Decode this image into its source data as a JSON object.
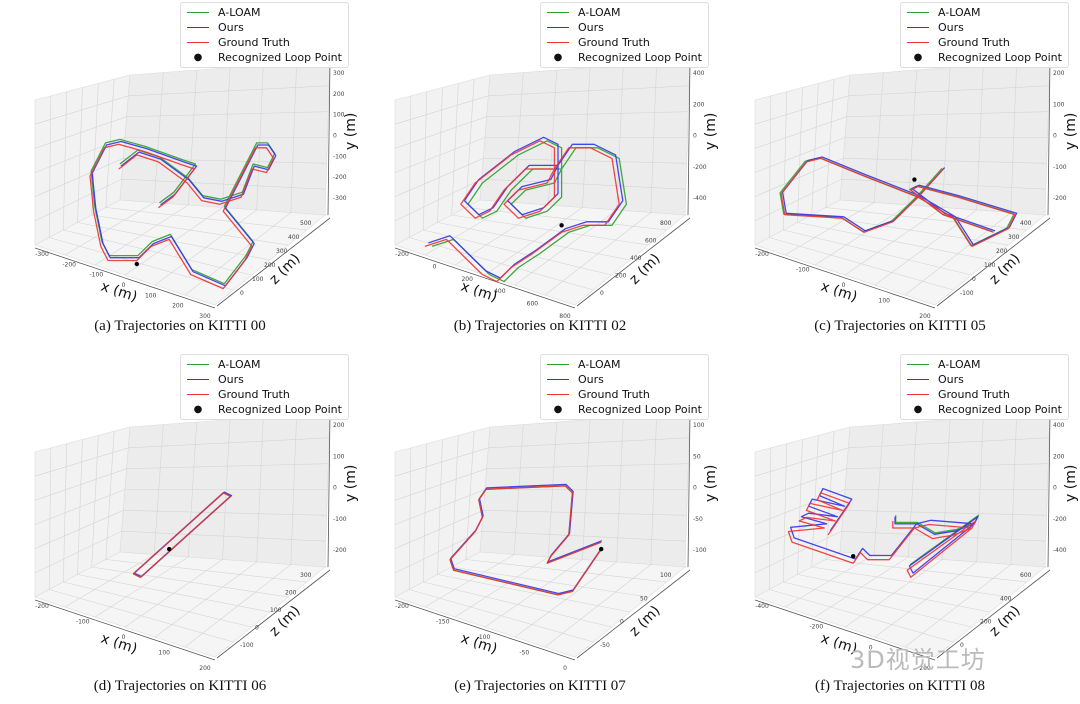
{
  "figure": {
    "watermark": "3D视觉工坊",
    "legend": [
      {
        "label": "A-LOAM",
        "color": "#2ca02c",
        "kind": "line"
      },
      {
        "label": "Ours",
        "color": "#3333ee",
        "kind": "line"
      },
      {
        "label": "Ground Truth",
        "color": "#ee3333",
        "kind": "line"
      },
      {
        "label": "Recognized Loop Point",
        "color": "#000000",
        "kind": "dot"
      }
    ]
  },
  "chart_data": [
    {
      "type": "line",
      "title": "(a) Trajectories on KITTI 00",
      "xlabel": "x (m)",
      "ylabel": "y (m)",
      "zlabel": "z (m)",
      "x_ticks": [
        "-300",
        "-200",
        "-100",
        "0",
        "100",
        "200",
        "300"
      ],
      "y_ticks": [
        "300",
        "200",
        "100",
        "0",
        "-100",
        "-200",
        "-300"
      ],
      "z_ticks": [
        "0",
        "100",
        "200",
        "300",
        "400",
        "500"
      ],
      "legend_position": "top-right",
      "series": [
        {
          "name": "Ground Truth",
          "color": "#ee3333",
          "points": [
            [
              0.33,
              0.48
            ],
            [
              0.38,
              0.44
            ],
            [
              0.44,
              0.46
            ],
            [
              0.52,
              0.52
            ],
            [
              0.56,
              0.57
            ],
            [
              0.61,
              0.58
            ],
            [
              0.67,
              0.56
            ],
            [
              0.7,
              0.48
            ],
            [
              0.74,
              0.49
            ],
            [
              0.76,
              0.45
            ],
            [
              0.74,
              0.42
            ],
            [
              0.71,
              0.42
            ],
            [
              0.62,
              0.6
            ],
            [
              0.7,
              0.7
            ],
            [
              0.68,
              0.74
            ],
            [
              0.62,
              0.82
            ],
            [
              0.53,
              0.78
            ],
            [
              0.47,
              0.68
            ],
            [
              0.42,
              0.7
            ],
            [
              0.38,
              0.74
            ],
            [
              0.3,
              0.74
            ],
            [
              0.28,
              0.7
            ],
            [
              0.26,
              0.6
            ],
            [
              0.25,
              0.5
            ],
            [
              0.29,
              0.42
            ],
            [
              0.33,
              0.41
            ],
            [
              0.4,
              0.43
            ],
            [
              0.51,
              0.47
            ],
            [
              0.54,
              0.48
            ],
            [
              0.48,
              0.56
            ],
            [
              0.44,
              0.59
            ]
          ]
        },
        {
          "name": "Ours",
          "color": "#3333ee",
          "offset": [
            0.006,
            -0.008
          ]
        },
        {
          "name": "A-LOAM",
          "color": "#2ca02c",
          "offset": [
            0.003,
            -0.014
          ]
        }
      ],
      "loop_points": [
        [
          0.38,
          0.75
        ]
      ]
    },
    {
      "type": "line",
      "title": "(b) Trajectories on KITTI 02",
      "xlabel": "x (m)",
      "ylabel": "y (m)",
      "zlabel": "z (m)",
      "x_ticks": [
        "-200",
        "0",
        "200",
        "400",
        "600",
        "800"
      ],
      "y_ticks": [
        "400",
        "200",
        "0",
        "-200",
        "-400"
      ],
      "z_ticks": [
        "0",
        "200",
        "400",
        "600",
        "800"
      ],
      "legend_position": "top-right",
      "series": [
        {
          "name": "Ground Truth",
          "color": "#ee3333",
          "points": [
            [
              0.18,
              0.7
            ],
            [
              0.24,
              0.68
            ],
            [
              0.3,
              0.74
            ],
            [
              0.34,
              0.78
            ],
            [
              0.38,
              0.8
            ],
            [
              0.42,
              0.76
            ],
            [
              0.48,
              0.72
            ],
            [
              0.56,
              0.66
            ],
            [
              0.62,
              0.64
            ],
            [
              0.68,
              0.64
            ],
            [
              0.72,
              0.58
            ],
            [
              0.7,
              0.45
            ],
            [
              0.64,
              0.42
            ],
            [
              0.58,
              0.42
            ],
            [
              0.54,
              0.48
            ],
            [
              0.54,
              0.56
            ],
            [
              0.5,
              0.6
            ],
            [
              0.44,
              0.62
            ],
            [
              0.4,
              0.58
            ],
            [
              0.44,
              0.54
            ],
            [
              0.52,
              0.52
            ],
            [
              0.54,
              0.48
            ],
            [
              0.46,
              0.48
            ],
            [
              0.4,
              0.54
            ],
            [
              0.36,
              0.6
            ],
            [
              0.32,
              0.62
            ],
            [
              0.28,
              0.58
            ],
            [
              0.32,
              0.52
            ],
            [
              0.42,
              0.44
            ],
            [
              0.5,
              0.4
            ],
            [
              0.54,
              0.42
            ],
            [
              0.54,
              0.48
            ]
          ]
        },
        {
          "name": "Ours",
          "color": "#3333ee",
          "offset": [
            0.01,
            -0.01
          ]
        },
        {
          "name": "A-LOAM",
          "color": "#2ca02c",
          "offset": [
            0.02,
            0.0
          ]
        }
      ],
      "loop_points": [
        [
          0.56,
          0.64
        ]
      ]
    },
    {
      "type": "line",
      "title": "(c) Trajectories on KITTI 05",
      "xlabel": "x (m)",
      "ylabel": "y (m)",
      "zlabel": "z (m)",
      "x_ticks": [
        "-200",
        "-100",
        "0",
        "100",
        "200"
      ],
      "y_ticks": [
        "200",
        "100",
        "0",
        "-100",
        "-200"
      ],
      "z_ticks": [
        "-100",
        "0",
        "100",
        "200",
        "300",
        "400"
      ],
      "legend_position": "top-right",
      "series": [
        {
          "name": "Ground Truth",
          "color": "#ee3333",
          "points": [
            [
              0.62,
              0.48
            ],
            [
              0.55,
              0.56
            ],
            [
              0.48,
              0.63
            ],
            [
              0.4,
              0.66
            ],
            [
              0.34,
              0.62
            ],
            [
              0.18,
              0.61
            ],
            [
              0.17,
              0.55
            ],
            [
              0.24,
              0.46
            ],
            [
              0.28,
              0.45
            ],
            [
              0.4,
              0.5
            ],
            [
              0.55,
              0.56
            ],
            [
              0.65,
              0.62
            ],
            [
              0.7,
              0.7
            ],
            [
              0.8,
              0.65
            ],
            [
              0.82,
              0.61
            ],
            [
              0.66,
              0.56
            ],
            [
              0.55,
              0.53
            ],
            [
              0.53,
              0.54
            ],
            [
              0.62,
              0.61
            ],
            [
              0.76,
              0.66
            ]
          ]
        },
        {
          "name": "Ours",
          "color": "#3333ee",
          "offset": [
            0.004,
            -0.004
          ]
        },
        {
          "name": "A-LOAM",
          "color": "#2ca02c",
          "offset": [
            -0.003,
            -0.002
          ]
        }
      ],
      "loop_points": [
        [
          0.54,
          0.51
        ]
      ]
    },
    {
      "type": "line",
      "title": "(d) Trajectories on KITTI 06",
      "xlabel": "x (m)",
      "ylabel": "y (m)",
      "zlabel": "z (m)",
      "x_ticks": [
        "-200",
        "-100",
        "0",
        "100",
        "200"
      ],
      "y_ticks": [
        "200",
        "100",
        "0",
        "-100",
        "-200"
      ],
      "z_ticks": [
        "-100",
        "0",
        "100",
        "200",
        "300"
      ],
      "legend_position": "top-right",
      "series": [
        {
          "name": "Ground Truth",
          "color": "#ee3333",
          "points": [
            [
              0.37,
              0.63
            ],
            [
              0.62,
              0.4
            ],
            [
              0.64,
              0.41
            ],
            [
              0.39,
              0.64
            ],
            [
              0.37,
              0.63
            ]
          ]
        },
        {
          "name": "Ours",
          "color": "#3333ee",
          "offset": [
            0.003,
            -0.002
          ]
        },
        {
          "name": "A-LOAM",
          "color": "#2ca02c",
          "offset": [
            0.0,
            0.0
          ]
        }
      ],
      "loop_points": [
        [
          0.47,
          0.56
        ]
      ]
    },
    {
      "type": "line",
      "title": "(e) Trajectories on KITTI 07",
      "xlabel": "x (m)",
      "ylabel": "y (m)",
      "zlabel": "z (m)",
      "x_ticks": [
        "-200",
        "-150",
        "-100",
        "-50",
        "0"
      ],
      "y_ticks": [
        "100",
        "50",
        "0",
        "-50",
        "-100"
      ],
      "z_ticks": [
        "-50",
        "0",
        "50",
        "100"
      ],
      "legend_position": "top-right",
      "series": [
        {
          "name": "Ground Truth",
          "color": "#ee3333",
          "points": [
            [
              0.67,
              0.54
            ],
            [
              0.52,
              0.6
            ],
            [
              0.53,
              0.58
            ],
            [
              0.58,
              0.52
            ],
            [
              0.59,
              0.4
            ],
            [
              0.57,
              0.38
            ],
            [
              0.35,
              0.39
            ],
            [
              0.33,
              0.42
            ],
            [
              0.34,
              0.47
            ],
            [
              0.32,
              0.51
            ],
            [
              0.25,
              0.59
            ],
            [
              0.26,
              0.62
            ],
            [
              0.55,
              0.69
            ],
            [
              0.59,
              0.68
            ],
            [
              0.67,
              0.56
            ]
          ]
        },
        {
          "name": "Ours",
          "color": "#3333ee",
          "offset": [
            0.002,
            -0.004
          ]
        },
        {
          "name": "A-LOAM",
          "color": "#2ca02c",
          "offset": [
            0.0,
            0.0
          ]
        }
      ],
      "loop_points": [
        [
          0.67,
          0.56
        ]
      ]
    },
    {
      "type": "line",
      "title": "(f) Trajectories on KITTI 08",
      "xlabel": "x (m)",
      "ylabel": "y (m)",
      "zlabel": "z (m)",
      "x_ticks": [
        "-400",
        "-200",
        "0",
        "200"
      ],
      "y_ticks": [
        "400",
        "200",
        "0",
        "-200",
        "-400"
      ],
      "z_ticks": [
        "0",
        "200",
        "400",
        "600"
      ],
      "legend_position": "top-right",
      "series": [
        {
          "name": "Ground Truth",
          "color": "#ee3333",
          "points": [
            [
              0.48,
              0.48
            ],
            [
              0.48,
              0.5
            ],
            [
              0.54,
              0.5
            ],
            [
              0.59,
              0.53
            ],
            [
              0.65,
              0.52
            ],
            [
              0.7,
              0.5
            ],
            [
              0.71,
              0.48
            ],
            [
              0.52,
              0.62
            ],
            [
              0.53,
              0.64
            ],
            [
              0.7,
              0.5
            ],
            [
              0.58,
              0.49
            ],
            [
              0.54,
              0.5
            ],
            [
              0.47,
              0.59
            ],
            [
              0.41,
              0.59
            ],
            [
              0.39,
              0.57
            ],
            [
              0.37,
              0.6
            ],
            [
              0.2,
              0.54
            ],
            [
              0.19,
              0.51
            ],
            [
              0.29,
              0.5
            ],
            [
              0.22,
              0.48
            ],
            [
              0.24,
              0.47
            ],
            [
              0.32,
              0.48
            ],
            [
              0.24,
              0.45
            ],
            [
              0.25,
              0.43
            ],
            [
              0.34,
              0.45
            ],
            [
              0.27,
              0.42
            ],
            [
              0.28,
              0.4
            ],
            [
              0.36,
              0.43
            ],
            [
              0.3,
              0.52
            ]
          ]
        },
        {
          "name": "Ours",
          "color": "#3333ee",
          "offset": [
            0.006,
            -0.012
          ]
        },
        {
          "name": "A-LOAM",
          "color": "#2ca02c",
          "offset": [
            0.008,
            -0.016
          ],
          "partial_from": 0,
          "partial_to": 7
        }
      ],
      "loop_points": [
        [
          0.37,
          0.58
        ]
      ]
    }
  ]
}
